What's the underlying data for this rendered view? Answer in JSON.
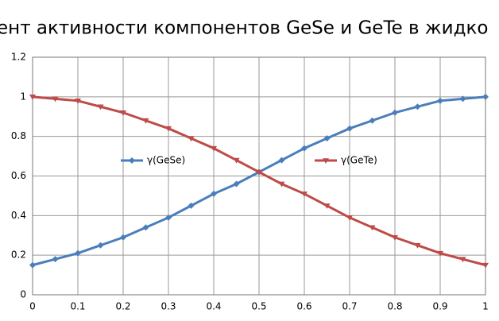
{
  "chart_data": {
    "type": "line",
    "title": "ент активности компонентов GeSe и GeTe в жидко",
    "x": [
      0,
      0.05,
      0.1,
      0.15,
      0.2,
      0.25,
      0.3,
      0.35,
      0.4,
      0.45,
      0.5,
      0.55,
      0.6,
      0.65,
      0.7,
      0.75,
      0.8,
      0.85,
      0.9,
      0.95,
      1
    ],
    "series": [
      {
        "name": "γ(GeSe)",
        "color": "#4a7ebb",
        "marker": "diamond",
        "values": [
          0.15,
          0.18,
          0.21,
          0.25,
          0.29,
          0.34,
          0.39,
          0.45,
          0.51,
          0.56,
          0.62,
          0.68,
          0.74,
          0.79,
          0.84,
          0.88,
          0.92,
          0.95,
          0.98,
          0.99,
          1.0
        ]
      },
      {
        "name": "γ(GeTe)",
        "color": "#be4b48",
        "marker": "triangle-down",
        "values": [
          1.0,
          0.99,
          0.98,
          0.95,
          0.92,
          0.88,
          0.84,
          0.79,
          0.74,
          0.68,
          0.62,
          0.56,
          0.51,
          0.45,
          0.39,
          0.34,
          0.29,
          0.25,
          0.21,
          0.18,
          0.15
        ]
      }
    ],
    "xlim": [
      0,
      1
    ],
    "xticks": [
      0,
      0.1,
      0.2,
      0.3,
      0.4,
      0.5,
      0.6,
      0.7,
      0.8,
      0.9,
      1
    ],
    "ylim": [
      0,
      1.2
    ],
    "yticks": [
      0,
      0.2,
      0.4,
      0.6,
      0.8,
      1,
      1.2
    ],
    "grid": true,
    "legend": "center"
  }
}
